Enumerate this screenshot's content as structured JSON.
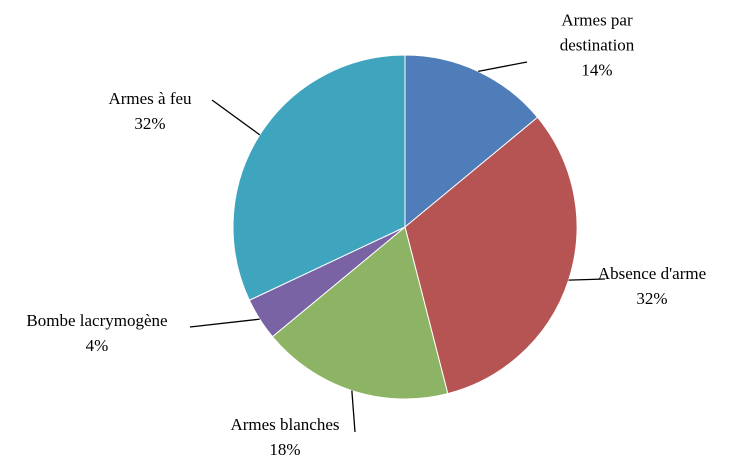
{
  "chart_data": {
    "type": "pie",
    "categories": [
      "Armes par destination",
      "Absence d'arme",
      "Armes blanches",
      "Bombe lacrymogène",
      "Armes à feu"
    ],
    "values": [
      14,
      32,
      18,
      4,
      32
    ],
    "value_labels": [
      "14%",
      "32%",
      "18%",
      "4%",
      "32%"
    ],
    "colors": [
      "#4f7db9",
      "#b55453",
      "#8db365",
      "#7a63a4",
      "#3fa4be"
    ]
  }
}
